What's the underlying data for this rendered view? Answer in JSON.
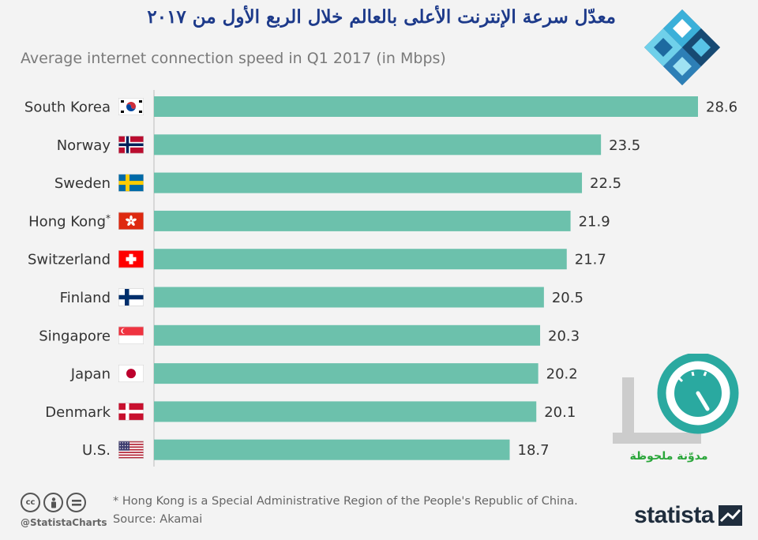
{
  "title_ar": "معدّل سرعة الإنترنت الأعلى بالعالم خلال الربع الأول من ٢٠١٧",
  "subtitle": "Average internet connection speed in Q1 2017 (in Mbps)",
  "footnote": "* Hong Kong is a Special Administrative Region of the People's Republic of China.",
  "source": "Source: Akamai",
  "handle": "@StatistaCharts",
  "brand": "statista",
  "watermark_text": "مدوّنة ملحوظة",
  "cc_icons": [
    "cc-icon",
    "by-icon",
    "nd-icon"
  ],
  "colors": {
    "bar": "#6cc1ac",
    "title": "#1d3a8a",
    "watermark": "#2aa63a",
    "axis": "#bbbbbb"
  },
  "chart_data": {
    "type": "bar",
    "orientation": "horizontal",
    "title": "معدّل سرعة الإنترنت الأعلى بالعالم خلال الربع الأول من ٢٠١٧",
    "subtitle": "Average internet connection speed in Q1 2017 (in Mbps)",
    "xlabel": "",
    "ylabel": "",
    "unit": "Mbps",
    "categories": [
      "South Korea",
      "Norway",
      "Sweden",
      "Hong Kong*",
      "Switzerland",
      "Finland",
      "Singapore",
      "Japan",
      "Denmark",
      "U.S."
    ],
    "values": [
      28.6,
      23.5,
      22.5,
      21.9,
      21.7,
      20.5,
      20.3,
      20.2,
      20.1,
      18.7
    ],
    "flags": [
      "south-korea-flag",
      "norway-flag",
      "sweden-flag",
      "hong-kong-flag",
      "switzerland-flag",
      "finland-flag",
      "singapore-flag",
      "japan-flag",
      "denmark-flag",
      "us-flag"
    ],
    "xlim": [
      0,
      28.6
    ]
  }
}
